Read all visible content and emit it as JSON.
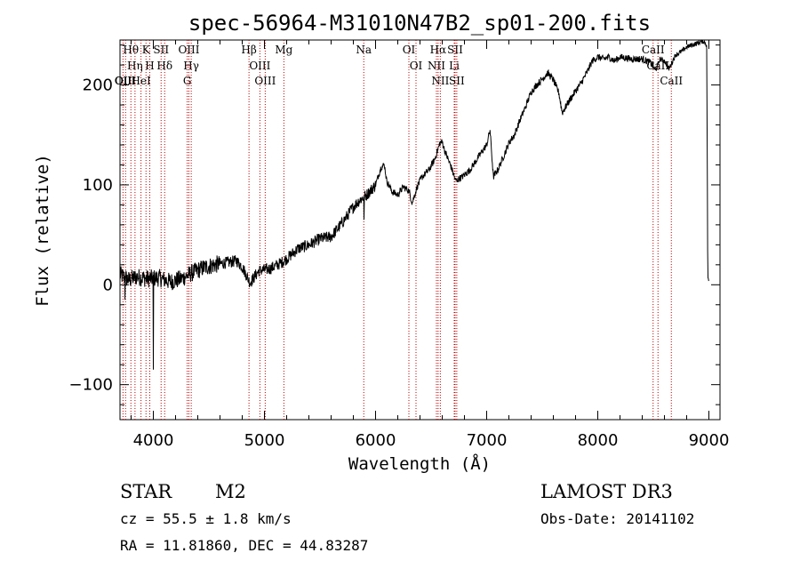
{
  "chart_data": {
    "type": "line",
    "title": "spec-56964-M31010N47B2_sp01-200.fits",
    "xlabel": "Wavelength (Å)",
    "ylabel": "Flux (relative)",
    "xlim": [
      3700,
      9100
    ],
    "ylim": [
      -135,
      245
    ],
    "x_ticks": [
      4000,
      5000,
      6000,
      7000,
      8000,
      9000
    ],
    "y_ticks": [
      -100,
      0,
      100,
      200
    ],
    "spectrum_anchors": [
      [
        3700,
        10
      ],
      [
        3780,
        5
      ],
      [
        3850,
        8
      ],
      [
        3950,
        6
      ],
      [
        4050,
        7
      ],
      [
        4150,
        3
      ],
      [
        4250,
        6
      ],
      [
        4350,
        12
      ],
      [
        4450,
        17
      ],
      [
        4550,
        20
      ],
      [
        4650,
        22
      ],
      [
        4750,
        24
      ],
      [
        4800,
        18
      ],
      [
        4870,
        2
      ],
      [
        4950,
        14
      ],
      [
        5050,
        16
      ],
      [
        5150,
        22
      ],
      [
        5200,
        26
      ],
      [
        5300,
        36
      ],
      [
        5400,
        40
      ],
      [
        5500,
        46
      ],
      [
        5600,
        48
      ],
      [
        5700,
        62
      ],
      [
        5800,
        78
      ],
      [
        5850,
        84
      ],
      [
        5920,
        90
      ],
      [
        6000,
        100
      ],
      [
        6050,
        118
      ],
      [
        6080,
        120
      ],
      [
        6100,
        104
      ],
      [
        6150,
        93
      ],
      [
        6200,
        90
      ],
      [
        6250,
        98
      ],
      [
        6300,
        94
      ],
      [
        6330,
        82
      ],
      [
        6380,
        100
      ],
      [
        6420,
        108
      ],
      [
        6480,
        115
      ],
      [
        6530,
        125
      ],
      [
        6580,
        142
      ],
      [
        6600,
        143
      ],
      [
        6620,
        135
      ],
      [
        6680,
        118
      ],
      [
        6720,
        104
      ],
      [
        6780,
        108
      ],
      [
        6850,
        115
      ],
      [
        6950,
        132
      ],
      [
        7000,
        140
      ],
      [
        7030,
        155
      ],
      [
        7060,
        108
      ],
      [
        7100,
        115
      ],
      [
        7150,
        128
      ],
      [
        7200,
        142
      ],
      [
        7250,
        150
      ],
      [
        7300,
        165
      ],
      [
        7350,
        178
      ],
      [
        7400,
        193
      ],
      [
        7450,
        200
      ],
      [
        7500,
        206
      ],
      [
        7550,
        212
      ],
      [
        7600,
        205
      ],
      [
        7650,
        192
      ],
      [
        7680,
        172
      ],
      [
        7720,
        180
      ],
      [
        7800,
        194
      ],
      [
        7850,
        202
      ],
      [
        7900,
        212
      ],
      [
        7950,
        224
      ],
      [
        8000,
        228
      ],
      [
        8050,
        226
      ],
      [
        8100,
        228
      ],
      [
        8150,
        224
      ],
      [
        8200,
        228
      ],
      [
        8300,
        226
      ],
      [
        8400,
        226
      ],
      [
        8480,
        222
      ],
      [
        8520,
        214
      ],
      [
        8560,
        226
      ],
      [
        8600,
        224
      ],
      [
        8640,
        216
      ],
      [
        8700,
        230
      ],
      [
        8760,
        234
      ],
      [
        8800,
        238
      ],
      [
        8850,
        240
      ],
      [
        8900,
        242
      ],
      [
        8950,
        244
      ],
      [
        8980,
        240
      ],
      [
        8990,
        10
      ],
      [
        9000,
        0
      ]
    ],
    "emission_lines": [
      {
        "name": "Hθ",
        "wavelength": 3798
      },
      {
        "name": "Hη",
        "wavelength": 3835
      },
      {
        "name": "OII",
        "wavelength": 3727
      },
      {
        "name": "OIII",
        "wavelength": 3750
      },
      {
        "name": "HeI",
        "wavelength": 3889
      },
      {
        "name": "K",
        "wavelength": 3934
      },
      {
        "name": "H",
        "wavelength": 3968
      },
      {
        "name": "SII",
        "wavelength": 4070
      },
      {
        "name": "Hδ",
        "wavelength": 4102
      },
      {
        "name": "OIII",
        "wavelength": 4320
      },
      {
        "name": "Hγ",
        "wavelength": 4341
      },
      {
        "name": "G",
        "wavelength": 4305
      },
      {
        "name": "Hβ",
        "wavelength": 4861
      },
      {
        "name": "OIII",
        "wavelength": 4959
      },
      {
        "name": "OIII",
        "wavelength": 5007
      },
      {
        "name": "Mg",
        "wavelength": 5175
      },
      {
        "name": "Na",
        "wavelength": 5894
      },
      {
        "name": "OI",
        "wavelength": 6300
      },
      {
        "name": "OI",
        "wavelength": 6364
      },
      {
        "name": "Hα",
        "wavelength": 6563
      },
      {
        "name": "NII",
        "wavelength": 6548
      },
      {
        "name": "NII",
        "wavelength": 6583
      },
      {
        "name": "SII",
        "wavelength": 6716
      },
      {
        "name": "Li",
        "wavelength": 6708
      },
      {
        "name": "SII",
        "wavelength": 6731
      },
      {
        "name": "CaII",
        "wavelength": 8498
      },
      {
        "name": "CaII",
        "wavelength": 8542
      },
      {
        "name": "CaII",
        "wavelength": 8662
      }
    ]
  },
  "info": {
    "class": "STAR",
    "subclass": "M2",
    "survey": "LAMOST DR3",
    "redshift": "cz = 55.5 ± 1.8 km/s",
    "obs_date": "Obs-Date: 20141102",
    "coords": "RA =  11.81860, DEC =  44.83287"
  },
  "colors": {
    "line_marker": "#c00000",
    "spectrum": "#000000"
  }
}
